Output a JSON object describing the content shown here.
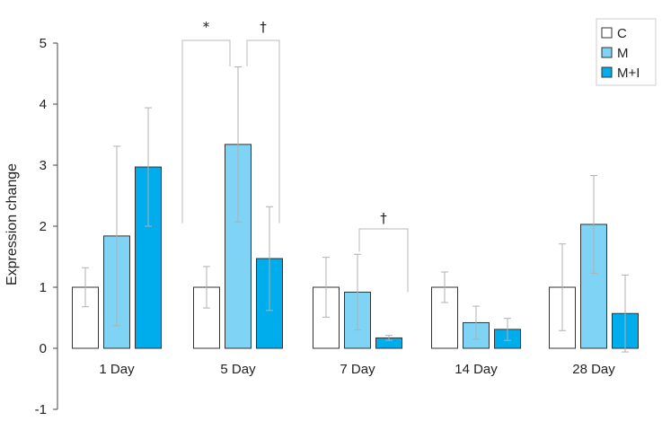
{
  "chart_data": {
    "type": "bar",
    "title": "",
    "xlabel": "",
    "ylabel": "Expression change",
    "ylim": [
      -1,
      5
    ],
    "yticks": [
      "-1",
      "0",
      "1",
      "2",
      "3",
      "4",
      "5"
    ],
    "categories": [
      "1 Day",
      "5 Day",
      "7 Day",
      "14 Day",
      "28 Day"
    ],
    "series": [
      {
        "name": "C",
        "color": "#ffffff",
        "values": [
          1.0,
          1.0,
          1.0,
          1.0,
          1.0
        ],
        "errors": [
          0.32,
          0.34,
          0.49,
          0.25,
          0.71
        ]
      },
      {
        "name": "M",
        "color": "#7fd3f4",
        "values": [
          1.84,
          3.34,
          0.92,
          0.42,
          2.03
        ],
        "errors": [
          1.47,
          1.27,
          0.62,
          0.27,
          0.8
        ]
      },
      {
        "name": "M+I",
        "color": "#00adec",
        "values": [
          2.97,
          1.47,
          0.17,
          0.31,
          0.57
        ],
        "errors": [
          0.97,
          0.85,
          0.04,
          0.18,
          0.63
        ]
      }
    ],
    "legend": {
      "position": "top-right"
    },
    "annotations": [
      {
        "category": "5 Day",
        "from": "C",
        "to": "M",
        "symbol": "*"
      },
      {
        "category": "5 Day",
        "from": "M",
        "to": "M+I",
        "symbol": "†"
      },
      {
        "category": "7 Day",
        "from": "M",
        "to": "M+I",
        "symbol": "†"
      }
    ],
    "grid": false
  }
}
